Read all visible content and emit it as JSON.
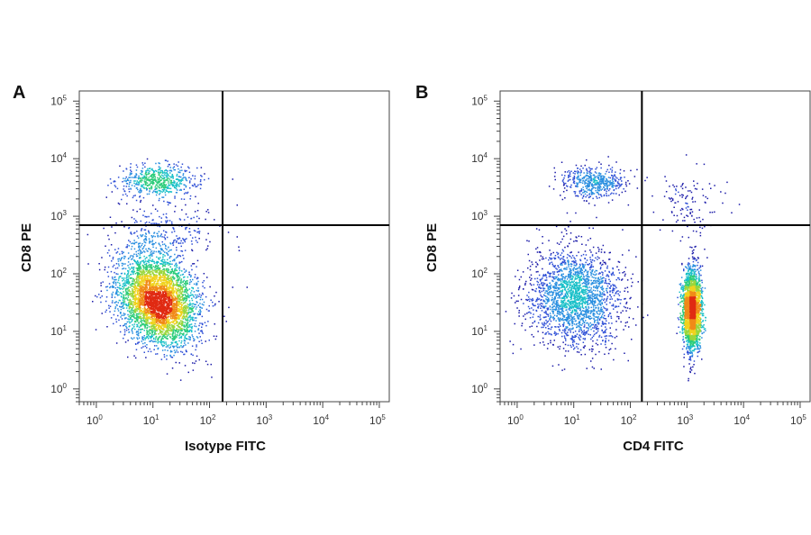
{
  "chart_data": [
    {
      "type": "scatter",
      "panel_label": "A",
      "xlabel": "Isotype FITC",
      "ylabel": "CD8 PE",
      "x_scale": "log",
      "y_scale": "log",
      "xlim": [
        0.5,
        150000
      ],
      "ylim": [
        0.6,
        150000
      ],
      "x_ticks": [
        1,
        10,
        100,
        1000,
        10000,
        100000
      ],
      "y_ticks": [
        1,
        10,
        100,
        1000,
        10000,
        100000
      ],
      "tick_base": "10",
      "tick_exponents": [
        "0",
        "1",
        "2",
        "3",
        "4",
        "5"
      ],
      "gate_x": 170,
      "gate_y": 700,
      "grid": false,
      "clusters": [
        {
          "center": [
            12,
            4200
          ],
          "spread_log": [
            0.35,
            0.14
          ],
          "count": 600
        },
        {
          "center": [
            12,
            35
          ],
          "spread_log": [
            0.32,
            0.42
          ],
          "count": 4200,
          "rotation_deg": 35
        },
        {
          "center": [
            15,
            500
          ],
          "spread_log": [
            0.45,
            0.25
          ],
          "count": 250
        }
      ],
      "outlier_points": [
        [
          250,
          4500
        ],
        [
          300,
          1600
        ],
        [
          300,
          450
        ],
        [
          250,
          60
        ],
        [
          450,
          60
        ],
        [
          320,
          300
        ]
      ]
    },
    {
      "type": "scatter",
      "panel_label": "B",
      "xlabel": "CD4 FITC",
      "ylabel": "CD8 PE",
      "x_scale": "log",
      "y_scale": "log",
      "xlim": [
        0.5,
        150000
      ],
      "ylim": [
        0.6,
        150000
      ],
      "x_ticks": [
        1,
        10,
        100,
        1000,
        10000,
        100000
      ],
      "y_ticks": [
        1,
        10,
        100,
        1000,
        10000,
        100000
      ],
      "tick_base": "10",
      "tick_exponents": [
        "0",
        "1",
        "2",
        "3",
        "4",
        "5"
      ],
      "gate_x": 160,
      "gate_y": 700,
      "grid": false,
      "clusters": [
        {
          "center": [
            22,
            4000
          ],
          "spread_log": [
            0.28,
            0.14
          ],
          "count": 500
        },
        {
          "center": [
            10,
            40
          ],
          "spread_log": [
            0.4,
            0.42
          ],
          "count": 2200,
          "rotation_deg": 35
        },
        {
          "center": [
            1200,
            25
          ],
          "spread_log": [
            0.08,
            0.35
          ],
          "count": 2600
        },
        {
          "center": [
            1000,
            1500
          ],
          "spread_log": [
            0.3,
            0.35
          ],
          "count": 120
        }
      ],
      "outlier_points": [
        [
          3000,
          3500
        ],
        [
          2500,
          1200
        ],
        [
          400,
          5000
        ],
        [
          5000,
          4000
        ]
      ]
    }
  ]
}
